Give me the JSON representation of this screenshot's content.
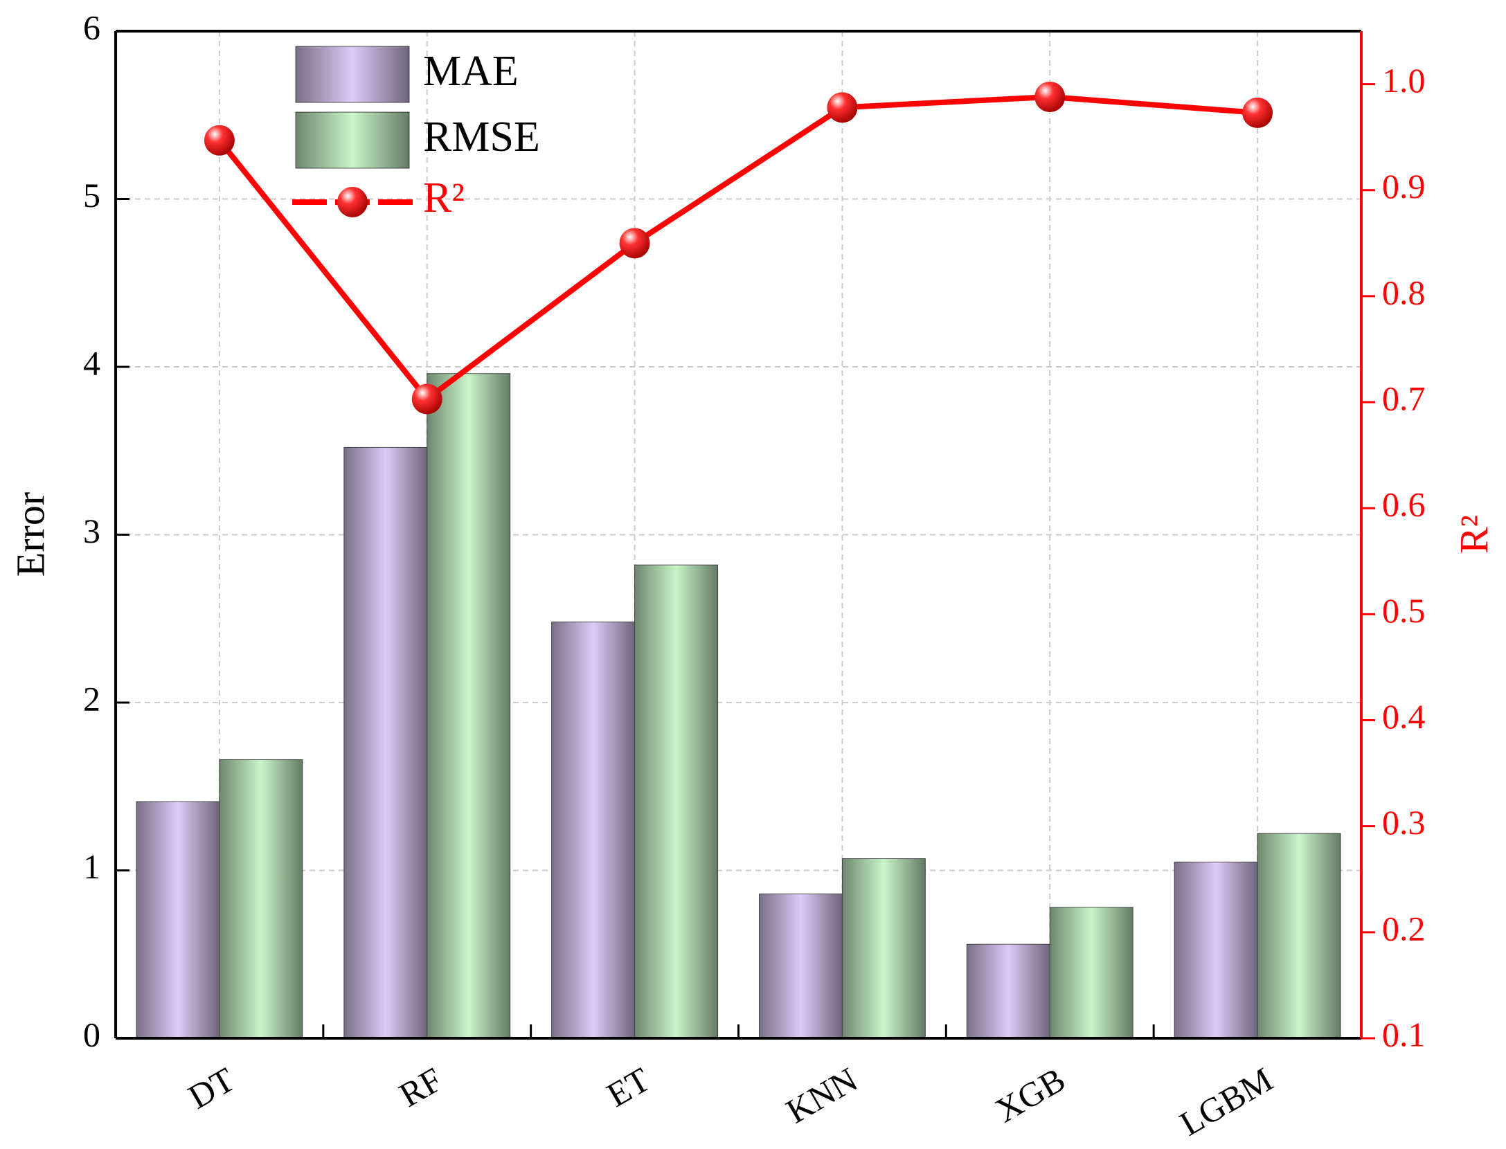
{
  "chart_data": {
    "type": "bar_line",
    "categories": [
      "DT",
      "RF",
      "ET",
      "KNN",
      "XGB",
      "LGBM"
    ],
    "y_label": "Error",
    "y2_label": "R²",
    "series": [
      {
        "name": "MAE",
        "type": "bar",
        "color": "#dccbf7",
        "values": [
          1.41,
          3.52,
          2.48,
          0.86,
          0.56,
          1.05
        ]
      },
      {
        "name": "RMSE",
        "type": "bar",
        "color": "#c9f5c9",
        "values": [
          1.66,
          3.96,
          2.82,
          1.07,
          0.78,
          1.22
        ]
      },
      {
        "name": "R²",
        "type": "line",
        "axis": "y2",
        "color": "#ff0000",
        "values": [
          0.947,
          0.703,
          0.85,
          0.978,
          0.988,
          0.973
        ]
      }
    ],
    "ylim": [
      0,
      6
    ],
    "yticks": [
      0,
      1,
      2,
      3,
      4,
      5,
      6
    ],
    "y2lim": [
      0.1,
      1.05
    ],
    "y2ticks": [
      0.1,
      0.2,
      0.3,
      0.4,
      0.5,
      0.6,
      0.7,
      0.8,
      0.9,
      {
        "value": 1,
        "label": "1.0"
      }
    ],
    "grid": true,
    "legend": "upper-left"
  }
}
